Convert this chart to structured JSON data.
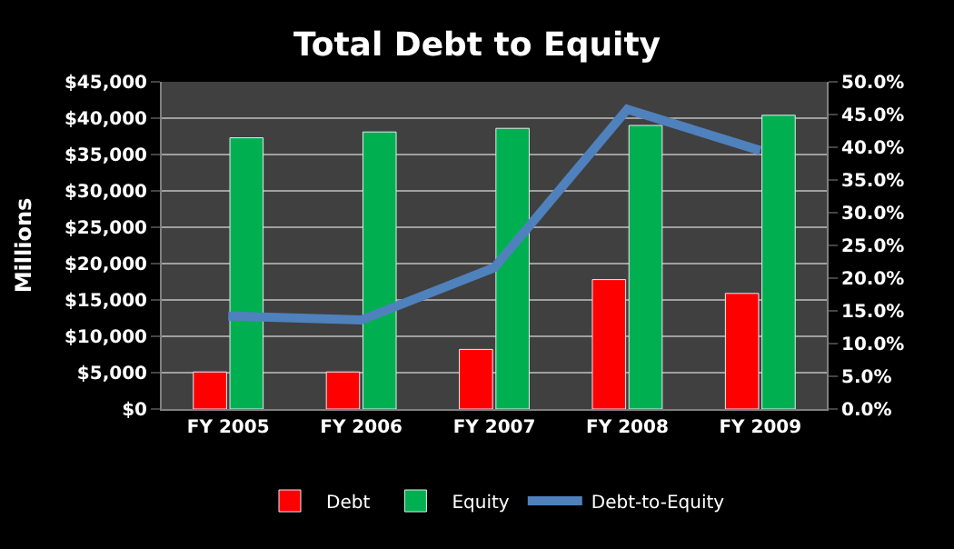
{
  "chart_data": {
    "type": "bar",
    "title": "Total Debt to Equity",
    "ylabel": "Millions",
    "categories": [
      "FY 2005",
      "FY 2006",
      "FY 2007",
      "FY 2008",
      "FY 2009"
    ],
    "series": [
      {
        "name": "Debt",
        "color": "#ff0000",
        "values": [
          5100,
          5100,
          8200,
          17800,
          15900
        ]
      },
      {
        "name": "Equity",
        "color": "#00b050",
        "values": [
          37300,
          38100,
          38600,
          39000,
          40400
        ]
      },
      {
        "name": "Debt-to-Equity",
        "type": "line",
        "axis": "y2",
        "color": "#4f81bd",
        "values": [
          14.2,
          13.6,
          21.6,
          45.8,
          39.5
        ]
      }
    ],
    "ylim": [
      0,
      45000
    ],
    "yticks": [
      {
        "value": 0,
        "label": "$0"
      },
      {
        "value": 5000,
        "label": "$5,000"
      },
      {
        "value": 10000,
        "label": "$10,000"
      },
      {
        "value": 15000,
        "label": "$15,000"
      },
      {
        "value": 20000,
        "label": "$20,000"
      },
      {
        "value": 25000,
        "label": "$25,000"
      },
      {
        "value": 30000,
        "label": "$30,000"
      },
      {
        "value": 35000,
        "label": "$35,000"
      },
      {
        "value": 40000,
        "label": "$40,000"
      },
      {
        "value": 45000,
        "label": "$45,000"
      }
    ],
    "y2lim": [
      0,
      50
    ],
    "y2ticks": [
      {
        "value": 0,
        "label": "0.0%"
      },
      {
        "value": 5,
        "label": "5.0%"
      },
      {
        "value": 10,
        "label": "10.0%"
      },
      {
        "value": 15,
        "label": "15.0%"
      },
      {
        "value": 20,
        "label": "20.0%"
      },
      {
        "value": 25,
        "label": "25.0%"
      },
      {
        "value": 30,
        "label": "30.0%"
      },
      {
        "value": 35,
        "label": "35.0%"
      },
      {
        "value": 40,
        "label": "40.0%"
      },
      {
        "value": 45,
        "label": "45.0%"
      },
      {
        "value": 50,
        "label": "50.0%"
      }
    ],
    "grid": "y",
    "legend": "bottom",
    "marker": "none",
    "line_style": "solid"
  }
}
